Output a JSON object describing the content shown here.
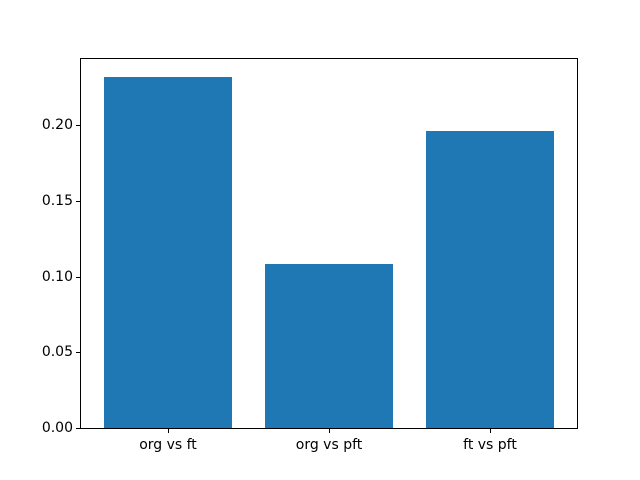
{
  "chart_data": {
    "type": "bar",
    "categories": [
      "org vs ft",
      "org vs pft",
      "ft vs pft"
    ],
    "values": [
      0.232,
      0.108,
      0.196
    ],
    "title": "",
    "xlabel": "",
    "ylabel": "",
    "ylim": [
      0,
      0.2436
    ],
    "xlim": [
      -0.54,
      2.54
    ],
    "bar_width": 0.8,
    "bar_color": "#1f77b4",
    "spine_color": "#000000",
    "background_color": "#ffffff",
    "ytick_values": [
      0.0,
      0.05,
      0.1,
      0.15,
      0.2
    ],
    "ytick_labels": [
      "0.00",
      "0.05",
      "0.10",
      "0.15",
      "0.20"
    ],
    "grid": false,
    "legend": false
  }
}
